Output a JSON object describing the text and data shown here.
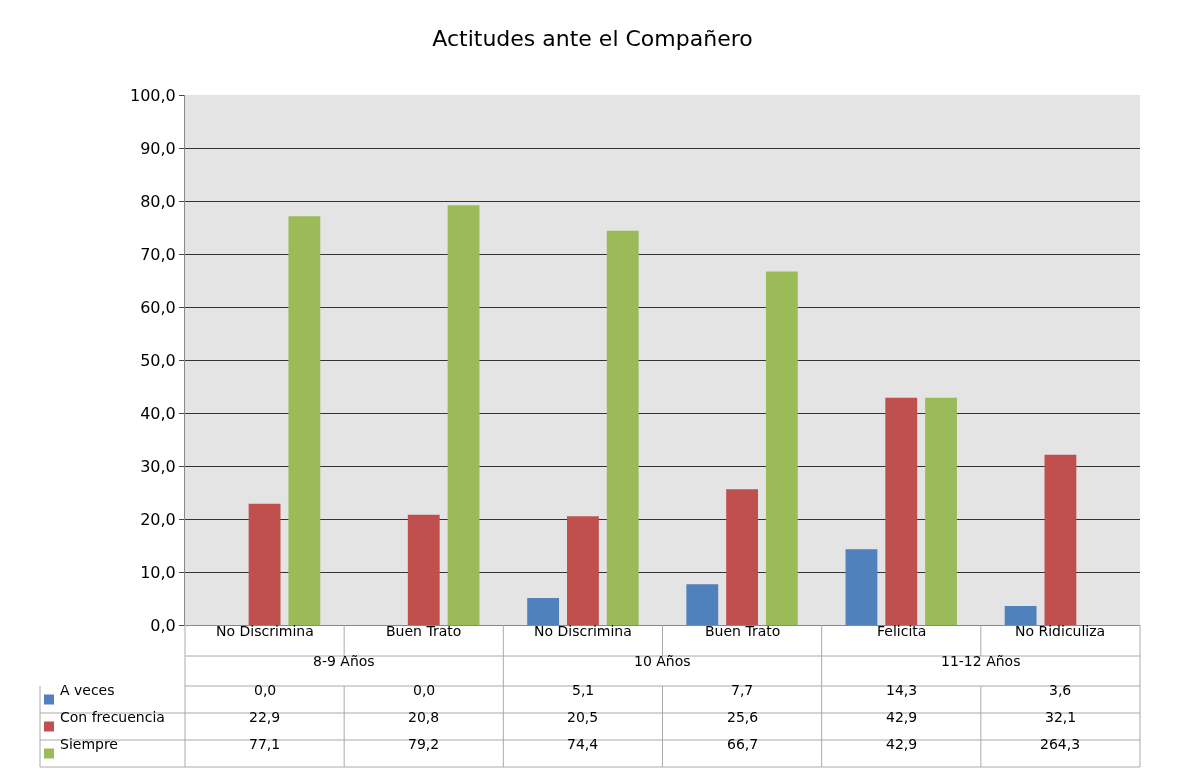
{
  "chart_data": {
    "type": "bar",
    "title": "Actitudes ante el Compañero",
    "categories": [
      "No Discrimina",
      "Buen Trato",
      "No Discrimina",
      "Buen Trato",
      "Felicita",
      "No Ridiculiza"
    ],
    "annotations": [
      "8-9 Años",
      "10 Años",
      "11-12 Años"
    ],
    "series": [
      {
        "name": "A veces",
        "color": "#4f81bd",
        "values": [
          0.0,
          0.0,
          5.1,
          7.7,
          14.3,
          3.6
        ],
        "value_labels": [
          "0,0",
          "0,0",
          "5,1",
          "7,7",
          "14,3",
          "3,6"
        ]
      },
      {
        "name": "Con frecuencia",
        "color": "#c0504d",
        "values": [
          22.9,
          20.8,
          20.5,
          25.6,
          42.9,
          32.1
        ],
        "value_labels": [
          "22,9",
          "20,8",
          "20,5",
          "25,6",
          "42,9",
          "32,1"
        ]
      },
      {
        "name": "Siempre",
        "color": "#9bbb59",
        "values": [
          77.1,
          79.2,
          74.4,
          66.7,
          42.9,
          null
        ],
        "value_labels": [
          "77,1",
          "79,2",
          "74,4",
          "66,7",
          "42,9",
          "264,3"
        ]
      }
    ],
    "ylim": [
      0,
      100
    ],
    "yticks": [
      {
        "value": 0,
        "label": "0,0"
      },
      {
        "value": 10,
        "label": "10,0"
      },
      {
        "value": 20,
        "label": "20,0"
      },
      {
        "value": 30,
        "label": "30,0"
      },
      {
        "value": 40,
        "label": "40,0"
      },
      {
        "value": 50,
        "label": "50,0"
      },
      {
        "value": 60,
        "label": "60,0"
      },
      {
        "value": 70,
        "label": "70,0"
      },
      {
        "value": 80,
        "label": "80,0"
      },
      {
        "value": 90,
        "label": "90,0"
      },
      {
        "value": 100,
        "label": "100,0"
      }
    ],
    "grid": "y",
    "legend": "bottom left"
  }
}
